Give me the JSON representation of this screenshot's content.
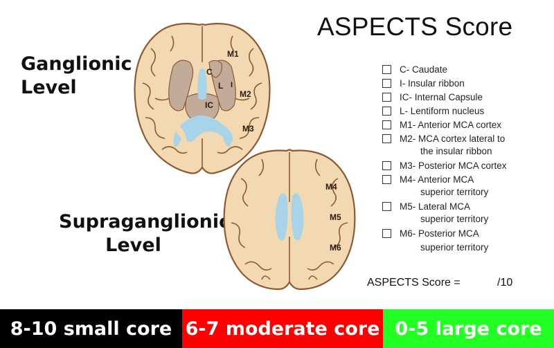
{
  "title": "ASPECTS Score",
  "levels": {
    "ganglionic": [
      "Ganglionic",
      "Level"
    ],
    "supraganglionic": [
      "Supraganglionic",
      "Level"
    ]
  },
  "brain_labels": {
    "M1": "M1",
    "C": "C",
    "L": "L",
    "I": "I",
    "IC": "IC",
    "M2": "M2",
    "M3": "M3",
    "M4": "M4",
    "M5": "M5",
    "M6": "M6"
  },
  "checklist": [
    {
      "line1": "C- Caudate"
    },
    {
      "line1": "I- Insular ribbon"
    },
    {
      "line1": "IC- Internal Capsule"
    },
    {
      "line1": "L- Lentiform nucleus"
    },
    {
      "line1": "M1- Anterior MCA cortex"
    },
    {
      "line1": "M2- MCA cortex lateral to",
      "line2": "the insular ribbon"
    },
    {
      "line1": "M3- Posterior MCA cortex"
    },
    {
      "line1": "M4- Anterior MCA",
      "line2": "superior territory"
    },
    {
      "line1": "M5- Lateral MCA",
      "line2": "superior territory"
    },
    {
      "line1": "M6- Posterior MCA",
      "line2": "superior territory"
    }
  ],
  "score": {
    "label": "ASPECTS Score =",
    "out_of": "/10"
  },
  "bars": [
    {
      "label": "8-10 small core",
      "color": "#000000"
    },
    {
      "label": "6-7 moderate core",
      "color": "#ff0000"
    },
    {
      "label": "0-5 large core",
      "color": "#22ff22"
    }
  ],
  "colors": {
    "brain": "#f3d9b1",
    "outline": "#8b5a33",
    "deep": "#c2ab98",
    "ventricle": "#a8d4ea"
  }
}
